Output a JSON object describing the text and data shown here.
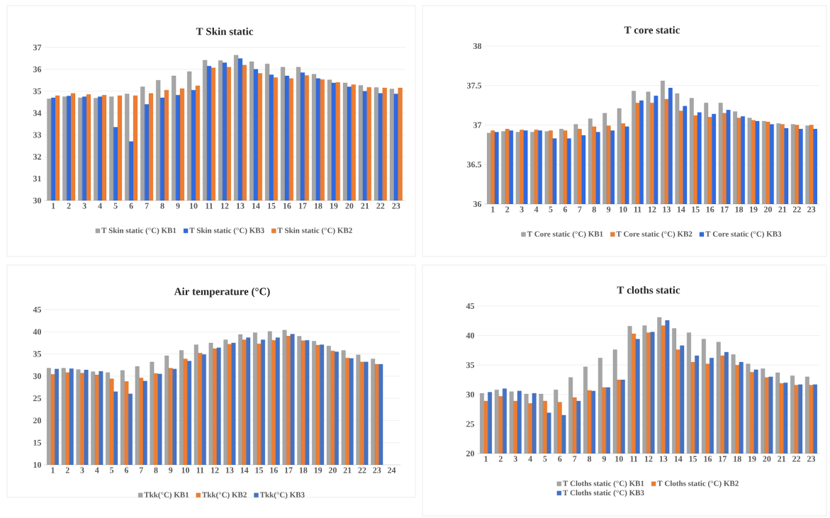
{
  "chart_data": [
    {
      "type": "bar",
      "title": "T Skin static",
      "categories": [
        "1",
        "2",
        "3",
        "4",
        "5",
        "6",
        "7",
        "8",
        "9",
        "10",
        "11",
        "12",
        "13",
        "14",
        "15",
        "16",
        "17",
        "18",
        "19",
        "20",
        "21",
        "22",
        "23"
      ],
      "series": [
        {
          "name": "T Skin static (°C) KB1",
          "color": "#a5a5a5",
          "values": [
            34.65,
            34.75,
            34.7,
            34.68,
            34.75,
            34.88,
            35.2,
            35.5,
            35.7,
            35.9,
            36.42,
            36.4,
            36.65,
            36.35,
            36.25,
            36.1,
            36.1,
            35.78,
            35.52,
            35.38,
            35.27,
            35.17,
            35.1
          ]
        },
        {
          "name": "T Skin static (°C) KB3",
          "color": "#2f6ae0",
          "values": [
            34.7,
            34.78,
            34.75,
            34.75,
            33.35,
            32.7,
            34.4,
            34.7,
            34.82,
            35.05,
            36.15,
            36.3,
            36.5,
            36.0,
            35.75,
            35.7,
            35.85,
            35.58,
            35.38,
            35.2,
            35.0,
            34.9,
            34.88
          ]
        },
        {
          "name": "T Skin static (°C) KB2",
          "color": "#ed7d31",
          "values": [
            34.8,
            34.9,
            34.85,
            34.82,
            34.8,
            34.8,
            34.9,
            35.05,
            35.12,
            35.25,
            36.07,
            36.1,
            36.2,
            35.82,
            35.62,
            35.58,
            35.72,
            35.53,
            35.4,
            35.3,
            35.18,
            35.15,
            35.15
          ]
        }
      ],
      "ylim": [
        30,
        37
      ],
      "yticks": [
        30,
        31,
        32,
        33,
        34,
        35,
        36,
        37
      ],
      "grid": "y",
      "legend": "bottom"
    },
    {
      "type": "bar",
      "title": "T core static",
      "categories": [
        "1",
        "2",
        "3",
        "4",
        "5",
        "6",
        "7",
        "8",
        "9",
        "10",
        "11",
        "12",
        "13",
        "14",
        "15",
        "16",
        "17",
        "18",
        "19",
        "20",
        "21",
        "22",
        "23"
      ],
      "series": [
        {
          "name": "T Core static (°C) KB1",
          "color": "#a5a5a5",
          "values": [
            36.9,
            36.92,
            36.91,
            36.91,
            36.92,
            36.95,
            37.01,
            37.08,
            37.15,
            37.21,
            37.43,
            37.42,
            37.56,
            37.4,
            37.34,
            37.28,
            37.28,
            37.17,
            37.09,
            37.05,
            37.02,
            37.01,
            36.99
          ]
        },
        {
          "name": "T Core static (°C) KB2",
          "color": "#ed7d31",
          "values": [
            36.93,
            36.95,
            36.94,
            36.94,
            36.93,
            36.93,
            36.95,
            36.98,
            36.99,
            37.02,
            37.28,
            37.28,
            37.33,
            37.18,
            37.12,
            37.1,
            37.15,
            37.09,
            37.06,
            37.04,
            37.01,
            37.0,
            37.0
          ]
        },
        {
          "name": "T Core static (°C) KB3",
          "color": "#2f6ae0",
          "values": [
            36.91,
            36.93,
            36.93,
            36.93,
            36.83,
            36.83,
            36.87,
            36.91,
            36.93,
            36.98,
            37.31,
            37.37,
            37.47,
            37.24,
            37.16,
            37.14,
            37.19,
            37.11,
            37.05,
            37.01,
            36.96,
            36.95,
            36.95
          ]
        }
      ],
      "ylim": [
        36,
        38
      ],
      "yticks": [
        36,
        36.5,
        37,
        37.5,
        38
      ],
      "grid": "y",
      "legend": "bottom"
    },
    {
      "type": "bar",
      "title": "Air temperature (°C)",
      "categories": [
        "1",
        "2",
        "3",
        "4",
        "5",
        "6",
        "7",
        "8",
        "9",
        "10",
        "11",
        "12",
        "13",
        "14",
        "15",
        "16",
        "17",
        "18",
        "19",
        "20",
        "21",
        "22",
        "23",
        "24"
      ],
      "series": [
        {
          "name": "Tkk(°C) KB1",
          "color": "#a5a5a5",
          "values": [
            31.8,
            31.8,
            31.5,
            31.0,
            30.8,
            31.3,
            32.2,
            33.2,
            34.6,
            35.8,
            37.1,
            37.5,
            38.2,
            39.4,
            39.8,
            40.1,
            40.4,
            39.0,
            37.9,
            36.8,
            35.8,
            34.8,
            33.9,
            null
          ]
        },
        {
          "name": "Tkk(°C) KB2",
          "color": "#ed7d31",
          "values": [
            30.4,
            30.8,
            30.7,
            30.3,
            29.4,
            28.8,
            29.6,
            30.6,
            31.8,
            33.9,
            35.2,
            36.2,
            37.2,
            38.2,
            37.3,
            38.1,
            39.1,
            38.0,
            37.0,
            35.7,
            34.1,
            33.2,
            32.7,
            null
          ]
        },
        {
          "name": "Tkk(°C) KB3",
          "color": "#4472c4",
          "values": [
            31.6,
            31.7,
            31.4,
            31.1,
            26.5,
            26.0,
            28.9,
            30.5,
            31.6,
            33.4,
            34.9,
            36.4,
            37.5,
            38.7,
            38.2,
            38.7,
            39.5,
            38.1,
            37.1,
            35.5,
            34.0,
            33.2,
            32.7,
            null
          ]
        }
      ],
      "ylim": [
        10,
        45
      ],
      "yticks": [
        10,
        15,
        20,
        25,
        30,
        35,
        40,
        45
      ],
      "grid": "y",
      "legend": "bottom"
    },
    {
      "type": "bar",
      "title": "T cloths static",
      "categories": [
        "1",
        "2",
        "3",
        "4",
        "5",
        "6",
        "7",
        "8",
        "9",
        "10",
        "11",
        "12",
        "13",
        "14",
        "15",
        "16",
        "17",
        "18",
        "19",
        "20",
        "21",
        "22",
        "23"
      ],
      "series": [
        {
          "name": "T Cloths static (°C) KB1",
          "color": "#a5a5a5",
          "values": [
            30.2,
            30.8,
            30.5,
            30.1,
            30.1,
            30.8,
            32.9,
            34.7,
            36.2,
            37.6,
            41.6,
            41.7,
            43.1,
            41.2,
            40.5,
            39.4,
            38.9,
            36.8,
            35.2,
            34.4,
            33.7,
            33.2,
            33.0
          ]
        },
        {
          "name": "T Cloths static (°C) KB2",
          "color": "#ed7d31",
          "values": [
            28.9,
            29.7,
            28.9,
            28.5,
            28.9,
            28.7,
            29.5,
            30.7,
            31.2,
            32.5,
            40.3,
            40.5,
            41.7,
            37.6,
            35.5,
            35.2,
            36.6,
            35.0,
            33.8,
            32.9,
            31.9,
            31.6,
            31.6
          ]
        },
        {
          "name": "T Cloths static (°C) KB3",
          "color": "#4472c4",
          "values": [
            30.4,
            31.0,
            30.6,
            30.2,
            26.9,
            26.5,
            28.9,
            30.6,
            31.2,
            32.5,
            39.4,
            40.6,
            42.6,
            38.3,
            36.6,
            36.2,
            37.2,
            35.5,
            34.2,
            33.0,
            32.0,
            31.7,
            31.7
          ]
        }
      ],
      "ylim": [
        20,
        45
      ],
      "yticks": [
        20,
        25,
        30,
        35,
        40,
        45
      ],
      "grid": "y",
      "legend": "bottom"
    }
  ]
}
